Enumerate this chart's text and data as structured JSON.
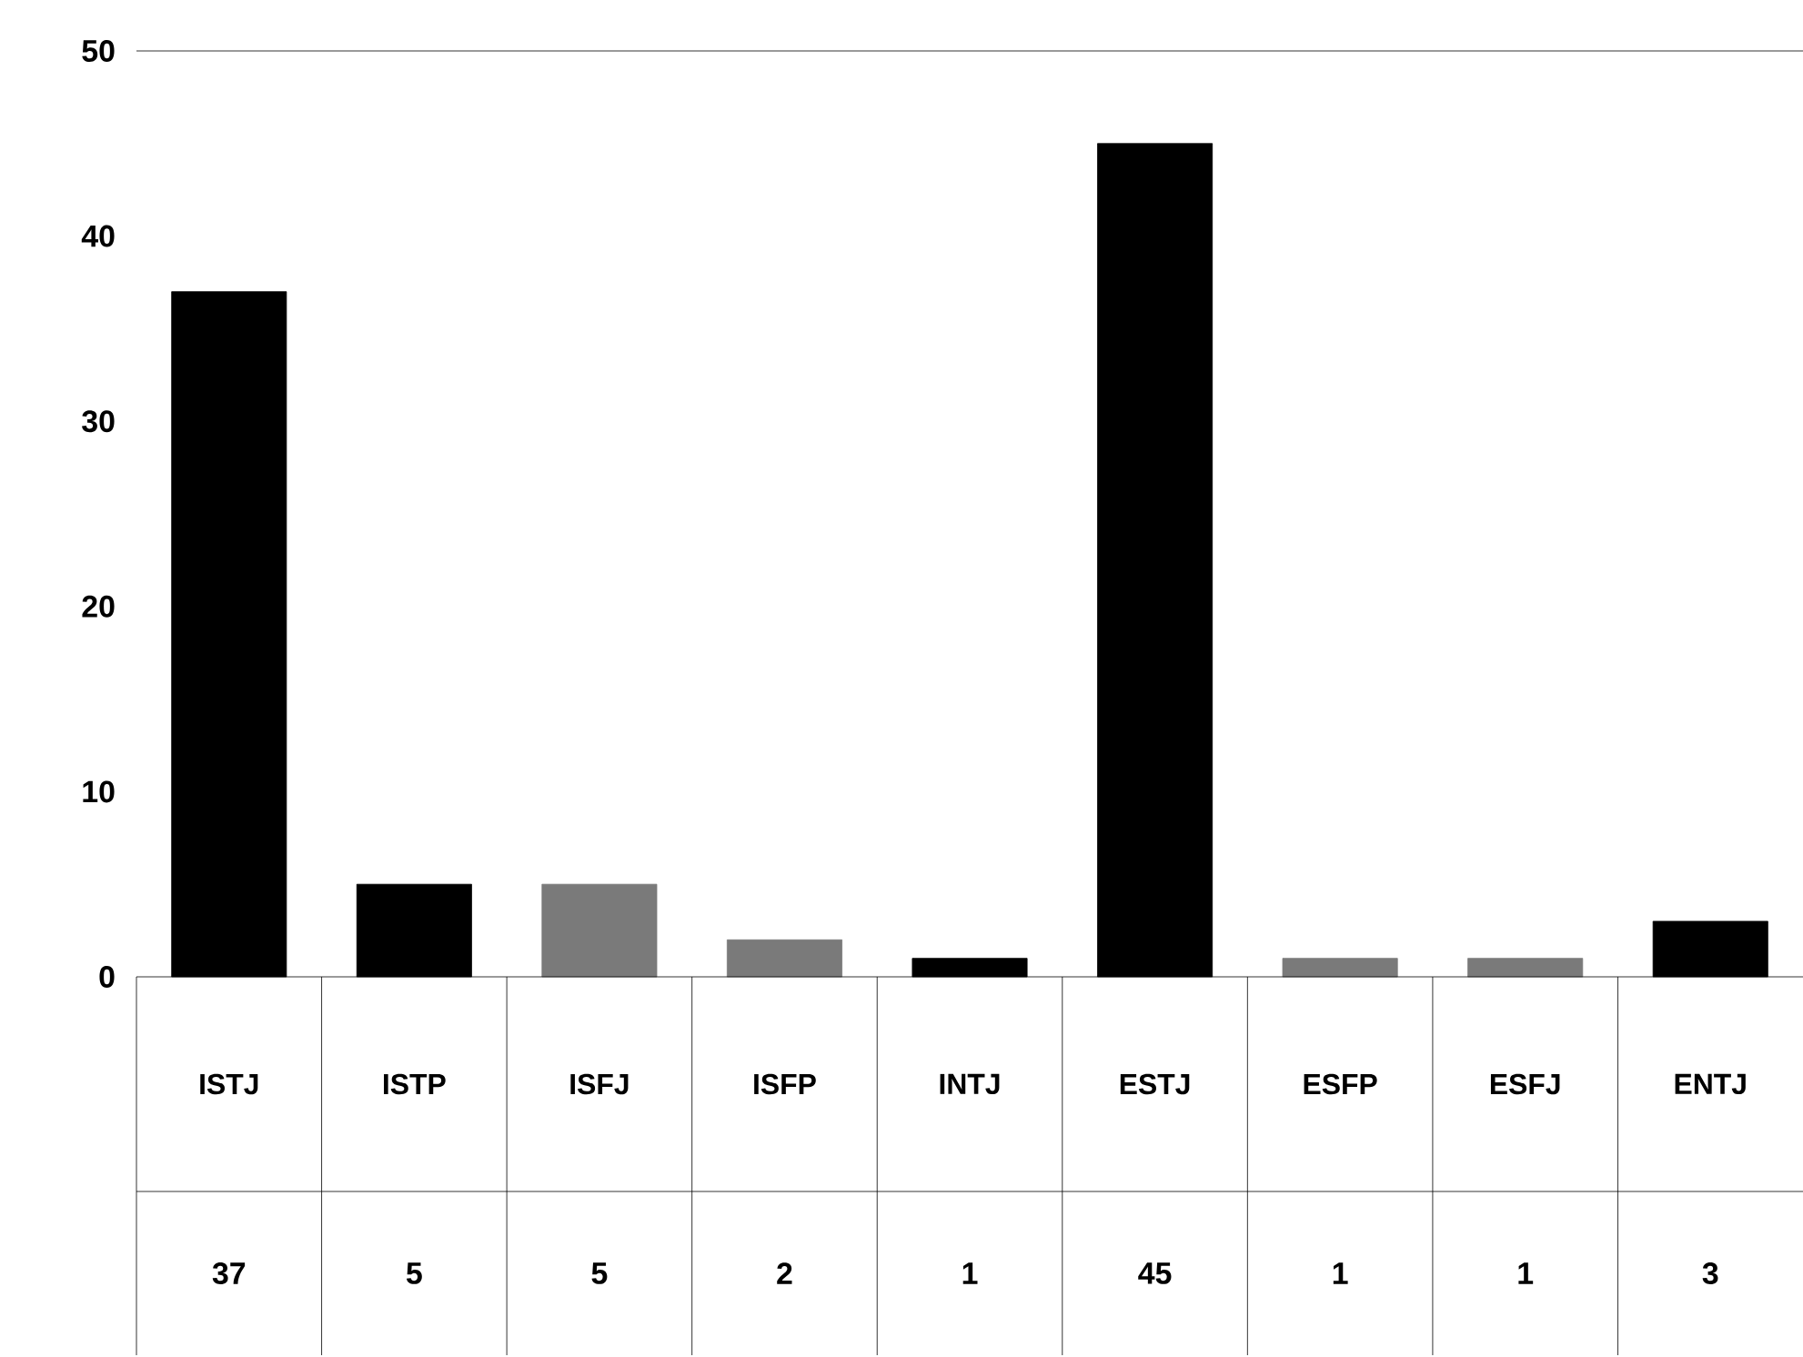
{
  "chart_data": {
    "type": "bar",
    "categories": [
      "ISTJ",
      "ISTP",
      "ISFJ",
      "ISFP",
      "INTJ",
      "ESTJ",
      "ESFP",
      "ESFJ",
      "ENTJ"
    ],
    "values": [
      37,
      5,
      5,
      2,
      1,
      45,
      1,
      1,
      3
    ],
    "colors": [
      "#000000",
      "#000000",
      "#7a7a7a",
      "#7a7a7a",
      "#000000",
      "#000000",
      "#7a7a7a",
      "#7a7a7a",
      "#000000"
    ],
    "ylim": [
      0,
      50
    ],
    "yticks": [
      0,
      10,
      20,
      30,
      40,
      50
    ],
    "data_labels": true
  }
}
